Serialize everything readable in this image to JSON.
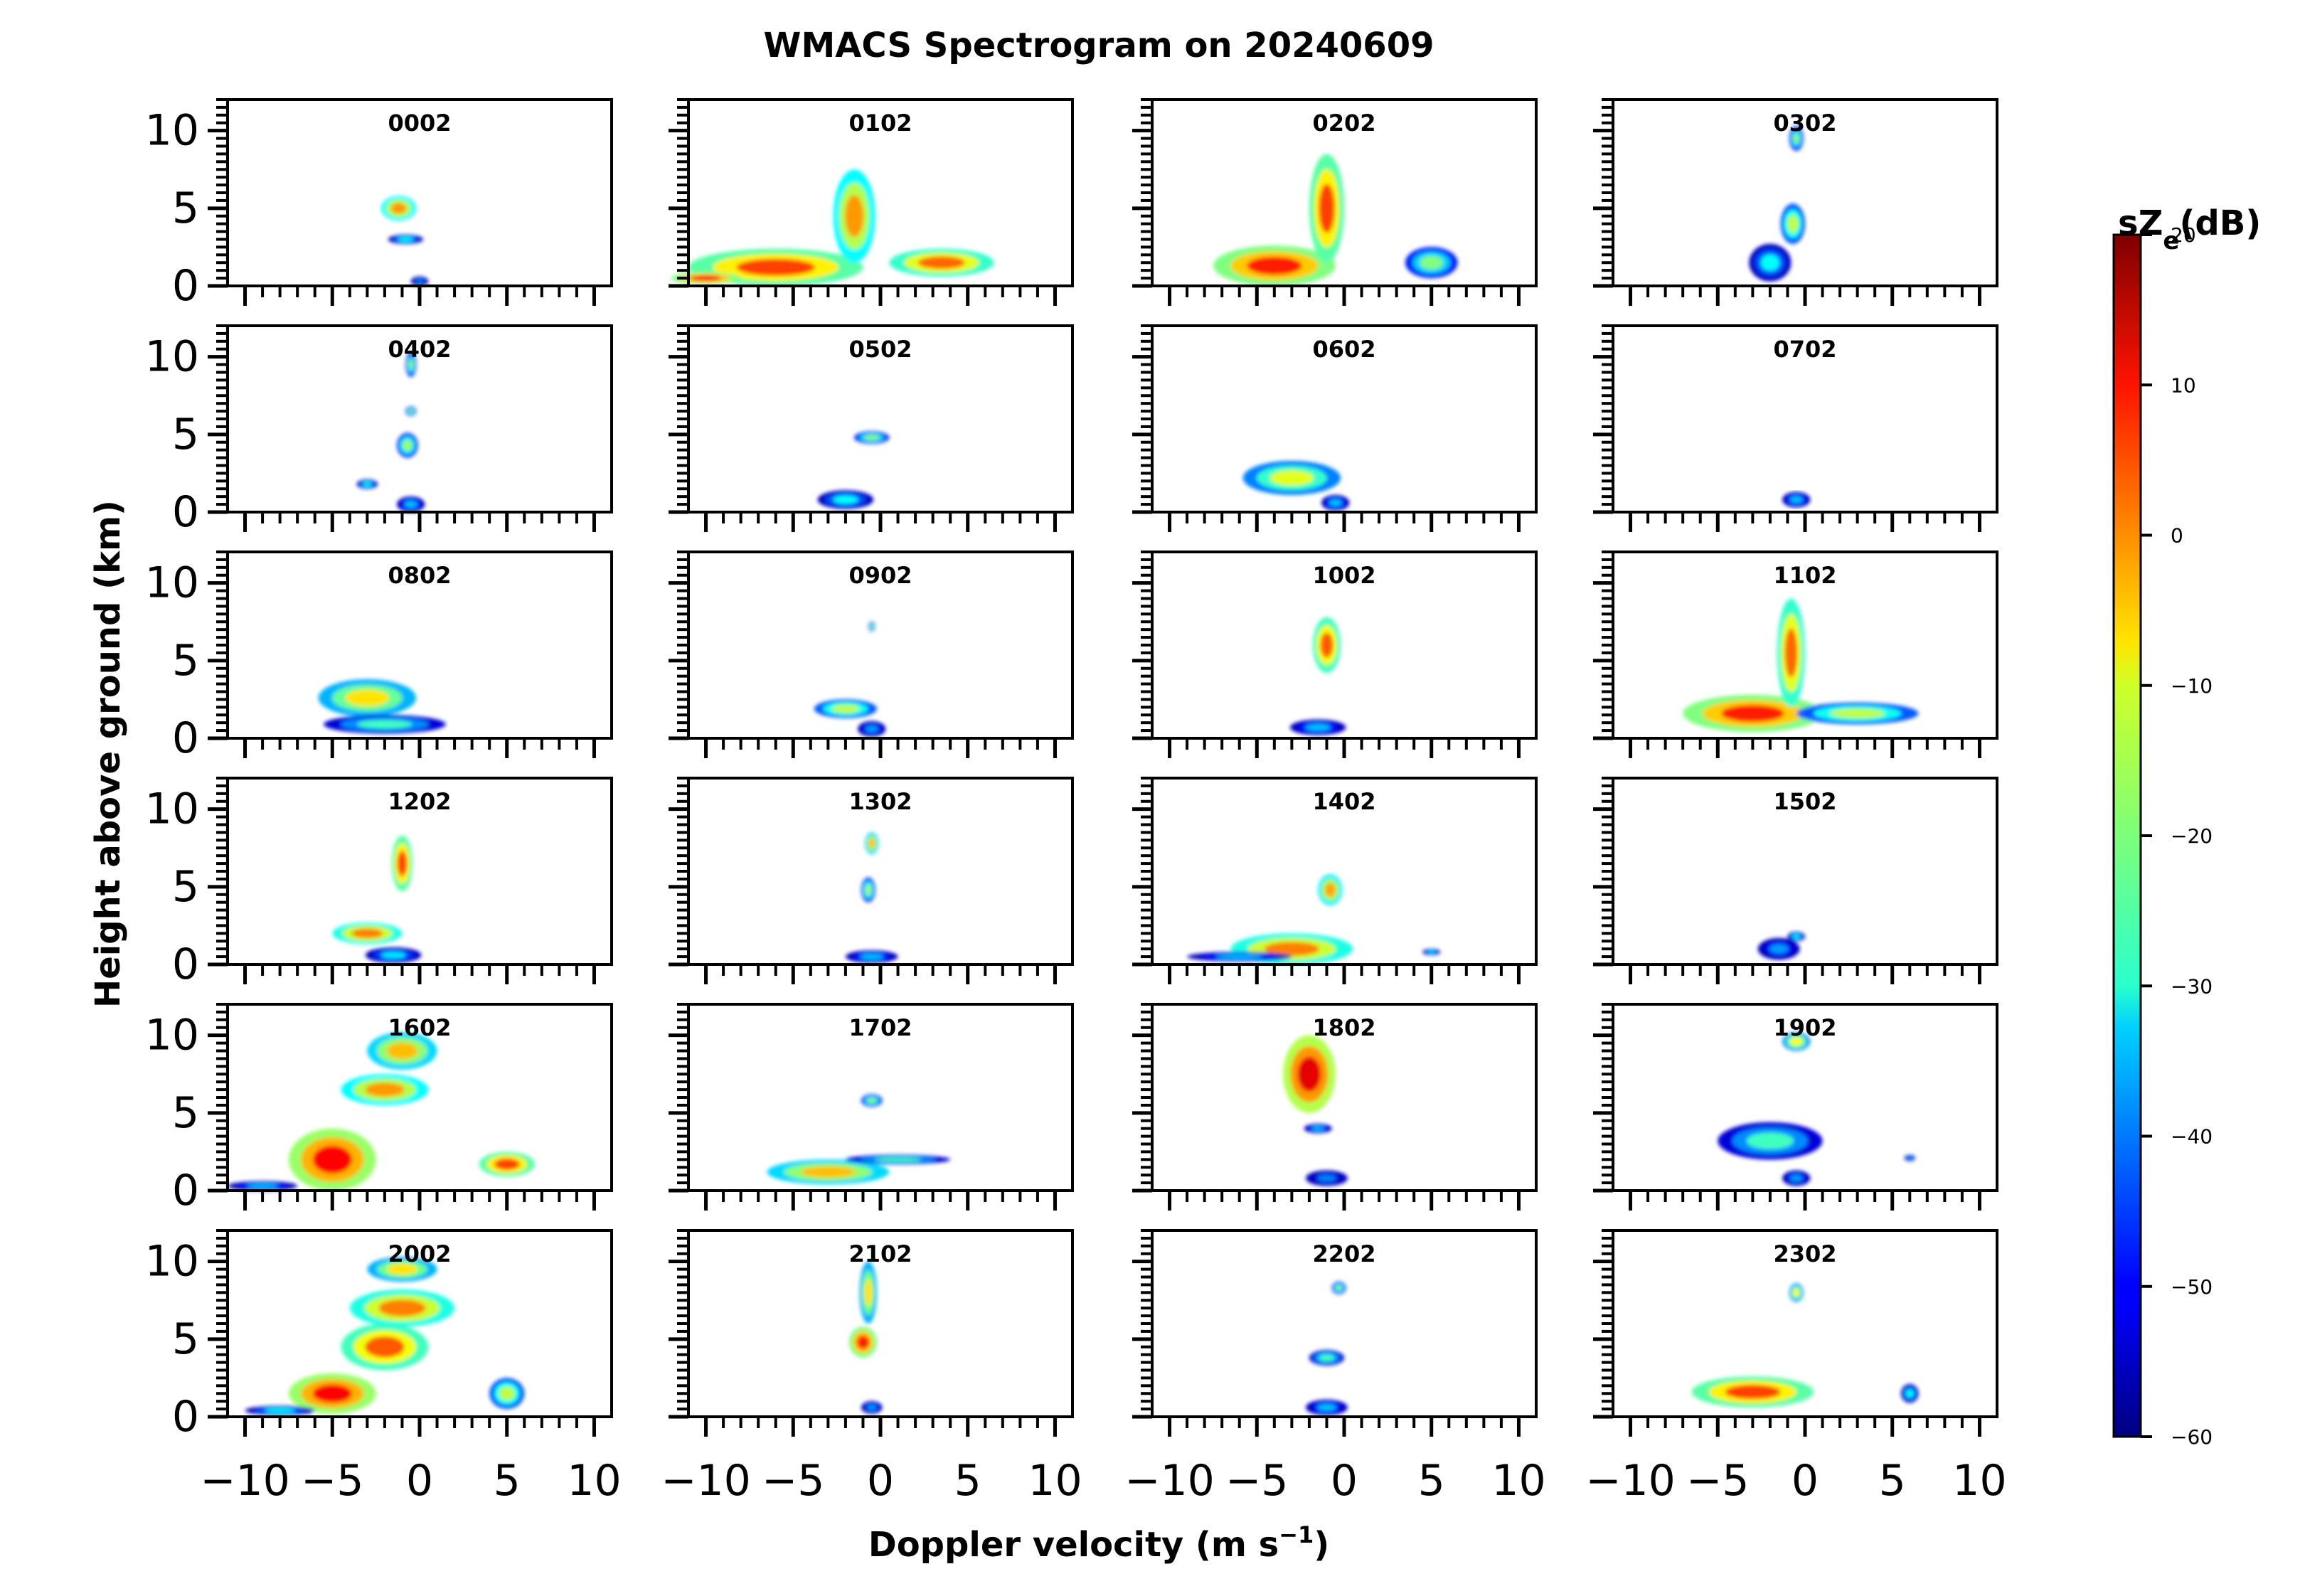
{
  "chart_data": {
    "type": "heatmap",
    "title": "WMACS Spectrogram on 20240609",
    "xlabel": "Doppler velocity (m s",
    "xlabel_sup": "−1",
    "xlabel_end": ")",
    "ylabel": "Height above ground (km)",
    "xlim": [
      -11,
      11
    ],
    "ylim": [
      0,
      12
    ],
    "xticks": [
      -10,
      -5,
      0,
      5,
      10
    ],
    "xtick_labels": [
      "−10",
      "−5",
      "0",
      "5",
      "10"
    ],
    "yticks": [
      0,
      5,
      10
    ],
    "ytick_labels": [
      "0",
      "5",
      "10"
    ],
    "colorbar": {
      "label": "sZ",
      "label_sub": "e",
      "label_end": "(dB)",
      "range": [
        -60,
        20
      ],
      "ticks": [
        20,
        10,
        0,
        -10,
        -20,
        -30,
        -40,
        -50,
        -60
      ],
      "tick_labels": [
        "20",
        "10",
        "0",
        "−10",
        "−20",
        "−30",
        "−40",
        "−50",
        "−60"
      ],
      "colormap": "jet"
    },
    "panels": [
      {
        "label": "0002",
        "blobs": [
          {
            "v": -1.2,
            "h": 5.0,
            "w": 1.0,
            "hh": 0.8,
            "dB": -2
          },
          {
            "v": -0.8,
            "h": 3.0,
            "w": 1.0,
            "hh": 0.3,
            "dB": -30
          },
          {
            "v": 0,
            "h": 0.3,
            "w": 0.5,
            "hh": 0.3,
            "dB": -40
          }
        ]
      },
      {
        "label": "0102",
        "blobs": [
          {
            "v": -6,
            "h": 1.2,
            "w": 5,
            "hh": 1.2,
            "dB": 5
          },
          {
            "v": -10,
            "h": 0.5,
            "w": 2,
            "hh": 0.4,
            "dB": 8
          },
          {
            "v": -1.5,
            "h": 4.5,
            "w": 1.2,
            "hh": 3,
            "dB": -2
          },
          {
            "v": 3.5,
            "h": 1.5,
            "w": 3,
            "hh": 0.9,
            "dB": 2
          }
        ]
      },
      {
        "label": "0202",
        "blobs": [
          {
            "v": -4,
            "h": 1.3,
            "w": 3.5,
            "hh": 1.3,
            "dB": 8
          },
          {
            "v": -1,
            "h": 5,
            "w": 1,
            "hh": 3.5,
            "dB": 5
          },
          {
            "v": 5,
            "h": 1.5,
            "w": 1.5,
            "hh": 1,
            "dB": -20
          }
        ]
      },
      {
        "label": "0302",
        "blobs": [
          {
            "v": -0.5,
            "h": 9.5,
            "w": 0.4,
            "hh": 0.8,
            "dB": -20
          },
          {
            "v": -0.7,
            "h": 4,
            "w": 0.7,
            "hh": 1.3,
            "dB": -15
          },
          {
            "v": -2,
            "h": 1.5,
            "w": 1.2,
            "hh": 1.2,
            "dB": -30
          }
        ]
      },
      {
        "label": "0402",
        "blobs": [
          {
            "v": -0.5,
            "h": 9.5,
            "w": 0.3,
            "hh": 0.8,
            "dB": -20
          },
          {
            "v": -0.5,
            "h": 6.5,
            "w": 0.3,
            "hh": 0.3,
            "dB": -20
          },
          {
            "v": -0.7,
            "h": 4.3,
            "w": 0.6,
            "hh": 0.8,
            "dB": -18
          },
          {
            "v": -3,
            "h": 1.8,
            "w": 0.6,
            "hh": 0.3,
            "dB": -30
          },
          {
            "v": -0.5,
            "h": 0.5,
            "w": 0.8,
            "hh": 0.5,
            "dB": -35
          }
        ]
      },
      {
        "label": "0502",
        "blobs": [
          {
            "v": -0.5,
            "h": 4.8,
            "w": 1.0,
            "hh": 0.4,
            "dB": -20
          },
          {
            "v": -2,
            "h": 0.8,
            "w": 1.6,
            "hh": 0.6,
            "dB": -30
          }
        ]
      },
      {
        "label": "0602",
        "blobs": [
          {
            "v": -3,
            "h": 2.2,
            "w": 2.8,
            "hh": 1.1,
            "dB": -12
          },
          {
            "v": -0.5,
            "h": 0.6,
            "w": 0.8,
            "hh": 0.5,
            "dB": -35
          }
        ]
      },
      {
        "label": "0702",
        "blobs": [
          {
            "v": -0.5,
            "h": 0.8,
            "w": 0.8,
            "hh": 0.5,
            "dB": -35
          }
        ]
      },
      {
        "label": "0802",
        "blobs": [
          {
            "v": -3,
            "h": 2.6,
            "w": 2.8,
            "hh": 1.2,
            "dB": -8
          },
          {
            "v": -2,
            "h": 0.9,
            "w": 3.5,
            "hh": 0.6,
            "dB": -25
          }
        ]
      },
      {
        "label": "0902",
        "blobs": [
          {
            "v": -0.5,
            "h": 7.2,
            "w": 0.2,
            "hh": 0.3,
            "dB": -20
          },
          {
            "v": -2,
            "h": 1.9,
            "w": 1.8,
            "hh": 0.6,
            "dB": -15
          },
          {
            "v": -0.5,
            "h": 0.6,
            "w": 0.8,
            "hh": 0.5,
            "dB": -38
          }
        ]
      },
      {
        "label": "1002",
        "blobs": [
          {
            "v": -1,
            "h": 6,
            "w": 0.8,
            "hh": 1.8,
            "dB": 3
          },
          {
            "v": -1.5,
            "h": 0.7,
            "w": 1.6,
            "hh": 0.5,
            "dB": -35
          }
        ]
      },
      {
        "label": "1102",
        "blobs": [
          {
            "v": -3,
            "h": 1.6,
            "w": 4,
            "hh": 1.2,
            "dB": 8
          },
          {
            "v": -0.8,
            "h": 5.5,
            "w": 0.8,
            "hh": 3.5,
            "dB": 2
          },
          {
            "v": 3,
            "h": 1.6,
            "w": 3.5,
            "hh": 0.7,
            "dB": -15
          }
        ]
      },
      {
        "label": "1202",
        "blobs": [
          {
            "v": -1,
            "h": 6.5,
            "w": 0.6,
            "hh": 1.8,
            "dB": 5
          },
          {
            "v": -3,
            "h": 2,
            "w": 2,
            "hh": 0.7,
            "dB": 0
          },
          {
            "v": -1.5,
            "h": 0.6,
            "w": 1.6,
            "hh": 0.5,
            "dB": -32
          }
        ]
      },
      {
        "label": "1302",
        "blobs": [
          {
            "v": -0.5,
            "h": 7.8,
            "w": 0.4,
            "hh": 0.7,
            "dB": -5
          },
          {
            "v": -0.7,
            "h": 4.8,
            "w": 0.4,
            "hh": 0.8,
            "dB": -18
          },
          {
            "v": -0.5,
            "h": 0.5,
            "w": 1.5,
            "hh": 0.4,
            "dB": -35
          }
        ]
      },
      {
        "label": "1402",
        "blobs": [
          {
            "v": -0.8,
            "h": 4.8,
            "w": 0.7,
            "hh": 1,
            "dB": -3
          },
          {
            "v": -3,
            "h": 1.0,
            "w": 3.5,
            "hh": 1,
            "dB": 0
          },
          {
            "v": -6,
            "h": 0.5,
            "w": 3,
            "hh": 0.3,
            "dB": -35
          },
          {
            "v": 5,
            "h": 0.8,
            "w": 0.5,
            "hh": 0.2,
            "dB": -35
          }
        ]
      },
      {
        "label": "1502",
        "blobs": [
          {
            "v": -0.5,
            "h": 1.8,
            "w": 0.5,
            "hh": 0.3,
            "dB": -30
          },
          {
            "v": -1.5,
            "h": 1,
            "w": 1.2,
            "hh": 0.7,
            "dB": -38
          }
        ]
      },
      {
        "label": "1602",
        "blobs": [
          {
            "v": -5,
            "h": 2,
            "w": 2.5,
            "hh": 2,
            "dB": 10
          },
          {
            "v": -9,
            "h": 0.3,
            "w": 2,
            "hh": 0.3,
            "dB": -35
          },
          {
            "v": -2,
            "h": 6.5,
            "w": 2.5,
            "hh": 1,
            "dB": -2
          },
          {
            "v": -1,
            "h": 9,
            "w": 2,
            "hh": 1.2,
            "dB": -5
          },
          {
            "v": 5,
            "h": 1.7,
            "w": 1.6,
            "hh": 0.8,
            "dB": 5
          }
        ]
      },
      {
        "label": "1702",
        "blobs": [
          {
            "v": -0.5,
            "h": 5.8,
            "w": 0.6,
            "hh": 0.4,
            "dB": -20
          },
          {
            "v": -3,
            "h": 1.2,
            "w": 3.5,
            "hh": 0.8,
            "dB": -5
          },
          {
            "v": 1,
            "h": 2,
            "w": 3,
            "hh": 0.3,
            "dB": -25
          }
        ]
      },
      {
        "label": "1802",
        "blobs": [
          {
            "v": -2,
            "h": 7.5,
            "w": 1.5,
            "hh": 2.5,
            "dB": 12
          },
          {
            "v": -1.5,
            "h": 4,
            "w": 0.8,
            "hh": 0.3,
            "dB": -35
          },
          {
            "v": -1,
            "h": 0.8,
            "w": 1.2,
            "hh": 0.5,
            "dB": -40
          }
        ]
      },
      {
        "label": "1902",
        "blobs": [
          {
            "v": -0.5,
            "h": 9.6,
            "w": 0.8,
            "hh": 0.6,
            "dB": -10
          },
          {
            "v": -2,
            "h": 3.2,
            "w": 3,
            "hh": 1.2,
            "dB": -25
          },
          {
            "v": -0.5,
            "h": 0.8,
            "w": 0.8,
            "hh": 0.5,
            "dB": -38
          },
          {
            "v": 6,
            "h": 2.1,
            "w": 0.3,
            "hh": 0.2,
            "dB": -40
          }
        ]
      },
      {
        "label": "2002",
        "blobs": [
          {
            "v": -5,
            "h": 1.5,
            "w": 2.5,
            "hh": 1.3,
            "dB": 10
          },
          {
            "v": -2,
            "h": 4.5,
            "w": 2.5,
            "hh": 1.5,
            "dB": 3
          },
          {
            "v": -1,
            "h": 7,
            "w": 3,
            "hh": 1.2,
            "dB": 0
          },
          {
            "v": -1,
            "h": 9.5,
            "w": 2,
            "hh": 0.8,
            "dB": -8
          },
          {
            "v": 5,
            "h": 1.5,
            "w": 1,
            "hh": 1,
            "dB": -15
          },
          {
            "v": -8,
            "h": 0.4,
            "w": 2,
            "hh": 0.3,
            "dB": -30
          }
        ]
      },
      {
        "label": "2102",
        "blobs": [
          {
            "v": -1,
            "h": 4.8,
            "w": 0.8,
            "hh": 1,
            "dB": 8
          },
          {
            "v": -0.7,
            "h": 8,
            "w": 0.5,
            "hh": 2,
            "dB": -8
          },
          {
            "v": -0.5,
            "h": 0.6,
            "w": 0.6,
            "hh": 0.4,
            "dB": -38
          }
        ]
      },
      {
        "label": "2202",
        "blobs": [
          {
            "v": -0.3,
            "h": 8.3,
            "w": 0.4,
            "hh": 0.4,
            "dB": -20
          },
          {
            "v": -1,
            "h": 3.8,
            "w": 1,
            "hh": 0.5,
            "dB": -25
          },
          {
            "v": -1,
            "h": 0.6,
            "w": 1.2,
            "hh": 0.5,
            "dB": -35
          }
        ]
      },
      {
        "label": "2302",
        "blobs": [
          {
            "v": -0.5,
            "h": 8,
            "w": 0.4,
            "hh": 0.6,
            "dB": -10
          },
          {
            "v": -3,
            "h": 1.6,
            "w": 3.5,
            "hh": 1,
            "dB": 5
          },
          {
            "v": 6,
            "h": 1.5,
            "w": 0.5,
            "hh": 0.6,
            "dB": -30
          }
        ]
      }
    ]
  }
}
